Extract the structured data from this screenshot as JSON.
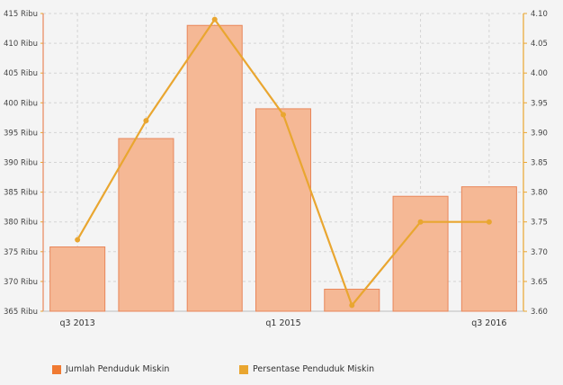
{
  "chart_data": {
    "type": "bar",
    "categories": [
      "q3 2013",
      "",
      "",
      "q1 2015",
      "",
      "",
      "q3 2016"
    ],
    "x_tick_labels": [
      "q3 2013",
      "q1 2015",
      "q3 2016"
    ],
    "series": [
      {
        "name": "Jumlah Penduduk Miskin",
        "type": "bar",
        "axis": "left",
        "color": "#f5b895",
        "stroke": "#e8865a",
        "legend_color": "#f07a32",
        "values": [
          375.8,
          394.0,
          413.0,
          399.0,
          368.7,
          384.3,
          385.9
        ]
      },
      {
        "name": "Persentase Penduduk Miskin",
        "type": "line",
        "axis": "right",
        "color": "#e9a630",
        "values": [
          3.72,
          3.92,
          4.09,
          3.93,
          3.61,
          3.75,
          3.75
        ]
      }
    ],
    "y_left": {
      "min": 365,
      "max": 415,
      "step": 5,
      "tick_labels": [
        "365 Ribu",
        "370 Ribu",
        "375 Ribu",
        "380 Ribu",
        "385 Ribu",
        "390 Ribu",
        "395 Ribu",
        "400 Ribu",
        "405 Ribu",
        "410 Ribu",
        "415 Ribu"
      ]
    },
    "y_right": {
      "min": 3.6,
      "max": 4.1,
      "step": 0.05,
      "tick_labels": [
        "3.60",
        "3.65",
        "3.70",
        "3.75",
        "3.80",
        "3.85",
        "3.90",
        "3.95",
        "4.00",
        "4.05",
        "4.10"
      ]
    },
    "grid": true,
    "legend_position": "bottom"
  }
}
